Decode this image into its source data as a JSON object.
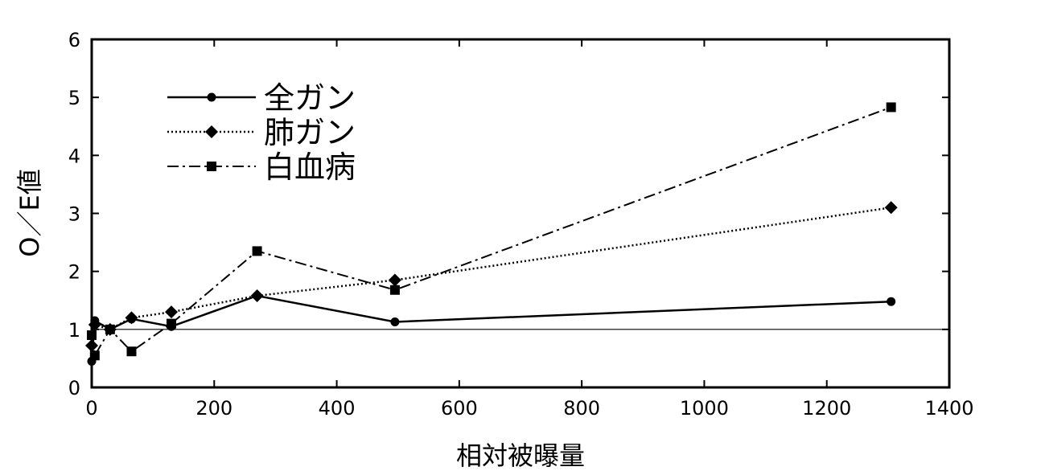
{
  "chart_data": {
    "type": "line",
    "xlabel": "相対被曝量",
    "ylabel": "O／E値",
    "xlim": [
      0,
      1400
    ],
    "ylim": [
      0,
      6
    ],
    "x_ticks": [
      0,
      200,
      400,
      600,
      800,
      1000,
      1200,
      1400
    ],
    "y_ticks": [
      0,
      1,
      2,
      3,
      4,
      5,
      6
    ],
    "x_tick_labels": [
      "0",
      "200",
      "400",
      "600",
      "800",
      "1000",
      "1200",
      "1400"
    ],
    "y_tick_labels": [
      "0",
      "1",
      "2",
      "3",
      "4",
      "5",
      "6"
    ],
    "reference_line": 1,
    "grid": false,
    "legend_position": "top-left",
    "series": [
      {
        "name": "全ガン",
        "line_style": "solid",
        "marker": "circle",
        "x": [
          0,
          5,
          30,
          65,
          130,
          270,
          495,
          1305
        ],
        "y": [
          0.45,
          1.15,
          1.0,
          1.18,
          1.05,
          1.58,
          1.13,
          1.48
        ]
      },
      {
        "name": "肺ガン",
        "line_style": "dotted",
        "marker": "diamond",
        "x": [
          0,
          5,
          30,
          65,
          130,
          270,
          495,
          1305
        ],
        "y": [
          0.72,
          1.08,
          1.0,
          1.2,
          1.3,
          1.58,
          1.85,
          3.1
        ]
      },
      {
        "name": "白血病",
        "line_style": "dashdot",
        "marker": "square",
        "x": [
          0,
          5,
          30,
          65,
          130,
          270,
          495,
          1305
        ],
        "y": [
          0.9,
          0.55,
          1.0,
          0.62,
          1.1,
          2.35,
          1.68,
          4.83
        ]
      }
    ]
  }
}
